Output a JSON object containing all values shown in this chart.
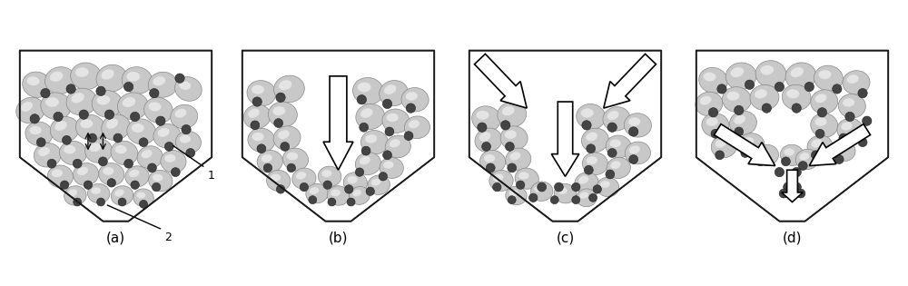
{
  "bg_color": "#ffffff",
  "container_color": "#1a1a1a",
  "particle_large_color": "#c8c8c8",
  "particle_large_highlight": "#f0f0f0",
  "particle_large_edge": "#888888",
  "particle_small_color": "#444444",
  "arrow_fc": "#ffffff",
  "arrow_ec": "#1a1a1a",
  "labels": [
    "(a)",
    "(b)",
    "(c)",
    "(d)"
  ],
  "fig_width": 10.0,
  "fig_height": 3.15,
  "lw": 1.2
}
